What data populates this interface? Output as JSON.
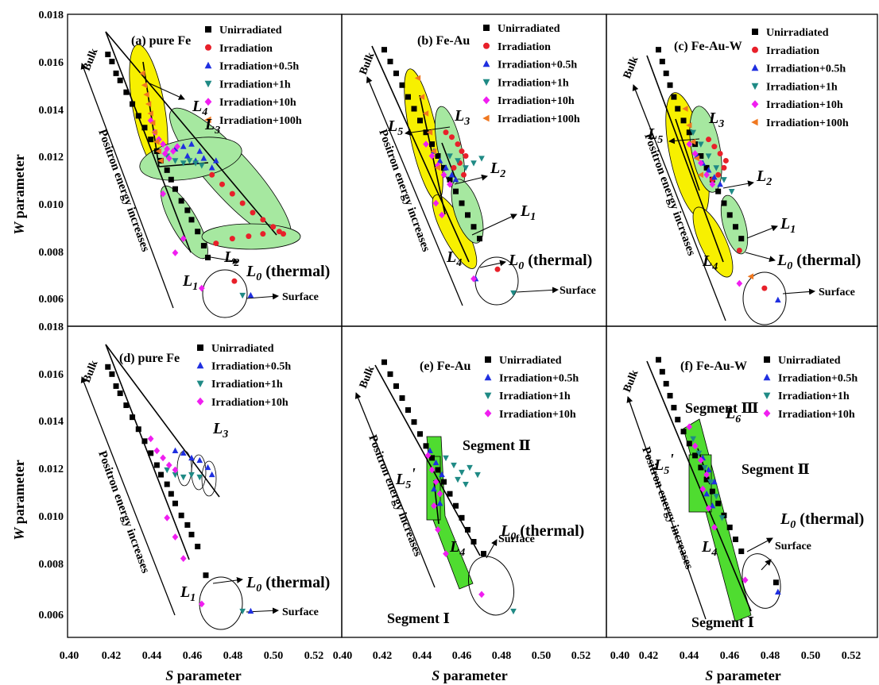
{
  "figure": {
    "ylabel_main": "W",
    "ylabel_suffix": " parameter",
    "xlabel_main": "S",
    "xlabel_suffix": " parameter",
    "surface_label": "Surface",
    "bulk_label": "Bulk",
    "positron_label": "Positron energy increases",
    "l0_label": "L",
    "l0_sub": "0",
    "l0_suffix": " (thermal)",
    "colors": {
      "Unirradiated": "#000000",
      "Irradiation": "#e8202a",
      "Irradiation+0.5h": "#1f2fe0",
      "Irradiation+1h": "#1f8a85",
      "Irradiation+10h": "#f01ef0",
      "Irradiation+100h": "#f07820",
      "yellow_region": "#f7f000",
      "green_region": "#a6e8a0",
      "segment_fill": "#4fdc30",
      "segment_text": "#1f2fe0"
    }
  },
  "chart_data": [
    {
      "type": "scatter",
      "panel": "(a) pure Fe",
      "xlabel": "",
      "ylabel": "W parameter",
      "xlim": [
        0.4,
        0.53
      ],
      "ylim": [
        0.0053,
        0.018
      ],
      "y_ticks": [
        "0.006",
        "0.008",
        "0.010",
        "0.012",
        "0.014",
        "0.016",
        "0.018"
      ],
      "x_ticks": [],
      "legend": [
        "Unirradiated",
        "Irradiation",
        "Irradiation+0.5h",
        "Irradiation+1h",
        "Irradiation+10h",
        "Irradiation+100h"
      ],
      "series": [
        {
          "name": "Unirradiated",
          "x": [
            0.419,
            0.421,
            0.423,
            0.425,
            0.428,
            0.431,
            0.434,
            0.437,
            0.44,
            0.443,
            0.445,
            0.448,
            0.45,
            0.452,
            0.455,
            0.458,
            0.46,
            0.463,
            0.466,
            0.468
          ],
          "y": [
            0.0163,
            0.016,
            0.0155,
            0.0152,
            0.0147,
            0.0142,
            0.0137,
            0.0132,
            0.0127,
            0.0122,
            0.0118,
            0.0114,
            0.011,
            0.0106,
            0.0101,
            0.0097,
            0.0093,
            0.0088,
            0.0082,
            0.0077
          ]
        },
        {
          "name": "Irradiation",
          "x": [
            0.47,
            0.475,
            0.48,
            0.485,
            0.49,
            0.495,
            0.5,
            0.503,
            0.505,
            0.495,
            0.488,
            0.48,
            0.472
          ],
          "y": [
            0.0112,
            0.0108,
            0.0104,
            0.01,
            0.0096,
            0.0093,
            0.009,
            0.0088,
            0.0087,
            0.0087,
            0.0086,
            0.0085,
            0.0083
          ]
        },
        {
          "name": "Irradiation+0.5h",
          "x": [
            0.452,
            0.456,
            0.46,
            0.464,
            0.466,
            0.462,
            0.458,
            0.47,
            0.472
          ],
          "y": [
            0.0123,
            0.0124,
            0.0125,
            0.0122,
            0.0119,
            0.0118,
            0.012,
            0.0115,
            0.0118
          ]
        },
        {
          "name": "Irradiation+1h",
          "x": [
            0.448,
            0.452,
            0.456,
            0.459,
            0.462,
            0.465
          ],
          "y": [
            0.012,
            0.0118,
            0.0117,
            0.0118,
            0.0117,
            0.0116
          ]
        },
        {
          "name": "Irradiation+10h",
          "x": [
            0.44,
            0.442,
            0.444,
            0.446,
            0.448,
            0.447,
            0.449,
            0.451,
            0.453,
            0.446,
            0.456,
            0.452
          ],
          "y": [
            0.0135,
            0.013,
            0.0127,
            0.0125,
            0.0123,
            0.0121,
            0.0119,
            0.0122,
            0.0124,
            0.0104,
            0.0085,
            0.0079
          ]
        },
        {
          "name": "Irradiation+100h",
          "x": [
            0.436,
            0.437,
            0.438,
            0.439,
            0.44,
            0.441,
            0.442,
            0.443,
            0.444,
            0.445
          ],
          "y": [
            0.0155,
            0.015,
            0.0146,
            0.0142,
            0.0138,
            0.0134,
            0.013,
            0.0126,
            0.0122,
            0.0118
          ]
        }
      ],
      "surface_points": [
        {
          "series": "Irradiation",
          "x": 0.481,
          "y": 0.0067
        },
        {
          "series": "Irradiation+0.5h",
          "x": 0.489,
          "y": 0.0061
        },
        {
          "series": "Irradiation+1h",
          "x": 0.485,
          "y": 0.0061
        },
        {
          "series": "Irradiation+10h",
          "x": 0.465,
          "y": 0.0064
        }
      ],
      "annotations": [
        "L4",
        "L3",
        "L2",
        "L1",
        "L0 (thermal)",
        "Bulk",
        "Positron energy increases",
        "Surface"
      ]
    },
    {
      "type": "scatter",
      "panel": "(b) Fe-Au",
      "xlim": [
        0.4,
        0.53
      ],
      "ylim": [
        0.0053,
        0.018
      ],
      "legend": [
        "Unirradiated",
        "Irradiation",
        "Irradiation+0.5h",
        "Irradiation+1h",
        "Irradiation+10h",
        "Irradiation+100h"
      ],
      "series": [
        {
          "name": "Unirradiated",
          "x": [
            0.421,
            0.424,
            0.427,
            0.43,
            0.433,
            0.436,
            0.439,
            0.442,
            0.445,
            0.448,
            0.451,
            0.454,
            0.457,
            0.46,
            0.463,
            0.466,
            0.469
          ],
          "y": [
            0.0165,
            0.016,
            0.0155,
            0.015,
            0.0145,
            0.014,
            0.0135,
            0.013,
            0.0125,
            0.012,
            0.0115,
            0.011,
            0.0105,
            0.01,
            0.0095,
            0.009,
            0.0085
          ]
        },
        {
          "name": "Irradiation",
          "x": [
            0.452,
            0.455,
            0.458,
            0.46,
            0.462,
            0.459,
            0.456,
            0.461,
            0.478
          ],
          "y": [
            0.013,
            0.0128,
            0.0125,
            0.0122,
            0.012,
            0.0117,
            0.0115,
            0.0112,
            0.0072
          ]
        },
        {
          "name": "Irradiation+0.5h",
          "x": [
            0.446,
            0.449,
            0.452,
            0.455,
            0.457,
            0.467
          ],
          "y": [
            0.0122,
            0.0118,
            0.0115,
            0.0112,
            0.011,
            0.0068
          ]
        },
        {
          "name": "Irradiation+1h",
          "x": [
            0.454,
            0.458,
            0.462,
            0.466,
            0.47,
            0.486
          ],
          "y": [
            0.012,
            0.0118,
            0.0115,
            0.0117,
            0.0119,
            0.0062
          ]
        },
        {
          "name": "Irradiation+10h",
          "x": [
            0.442,
            0.445,
            0.448,
            0.451,
            0.454,
            0.447,
            0.45,
            0.466
          ],
          "y": [
            0.0125,
            0.012,
            0.0116,
            0.0112,
            0.0108,
            0.01,
            0.0095,
            0.0068
          ]
        },
        {
          "name": "Irradiation+100h",
          "x": [
            0.438,
            0.44,
            0.442,
            0.444,
            0.446,
            0.448
          ],
          "y": [
            0.0153,
            0.0145,
            0.0138,
            0.013,
            0.0122,
            0.0115
          ]
        }
      ],
      "annotations": [
        "L5",
        "L3",
        "L2",
        "L1",
        "L4",
        "L0 (thermal)",
        "Bulk",
        "Positron energy increases",
        "Surface"
      ]
    },
    {
      "type": "scatter",
      "panel": "(c) Fe-Au-W",
      "xlim": [
        0.4,
        0.53
      ],
      "ylim": [
        0.0053,
        0.018
      ],
      "legend": [
        "Unirradiated",
        "Irradiation",
        "Irradiation+0.5h",
        "Irradiation+1h",
        "Irradiation+10h",
        "Irradiation+100h"
      ],
      "series": [
        {
          "name": "Unirradiated",
          "x": [
            0.42,
            0.422,
            0.424,
            0.426,
            0.428,
            0.43,
            0.433,
            0.436,
            0.439,
            0.442,
            0.445,
            0.448,
            0.451,
            0.454,
            0.457,
            0.46,
            0.463
          ],
          "y": [
            0.0165,
            0.016,
            0.0155,
            0.015,
            0.0145,
            0.014,
            0.0135,
            0.013,
            0.0125,
            0.012,
            0.0115,
            0.011,
            0.0105,
            0.01,
            0.0095,
            0.009,
            0.0085
          ]
        },
        {
          "name": "Irradiation",
          "x": [
            0.446,
            0.449,
            0.452,
            0.455,
            0.454,
            0.451,
            0.448,
            0.462,
            0.475
          ],
          "y": [
            0.0127,
            0.0124,
            0.0121,
            0.0118,
            0.0115,
            0.0112,
            0.011,
            0.008,
            0.0064
          ]
        },
        {
          "name": "Irradiation+0.5h",
          "x": [
            0.44,
            0.443,
            0.446,
            0.449,
            0.452,
            0.482
          ],
          "y": [
            0.012,
            0.0117,
            0.0114,
            0.0111,
            0.0108,
            0.0059
          ]
        },
        {
          "name": "Irradiation+1h",
          "x": [
            0.438,
            0.442,
            0.446,
            0.45,
            0.454,
            0.458
          ],
          "y": [
            0.013,
            0.0125,
            0.012,
            0.0115,
            0.011,
            0.0105
          ]
        },
        {
          "name": "Irradiation+10h",
          "x": [
            0.436,
            0.439,
            0.442,
            0.445,
            0.448,
            0.462
          ],
          "y": [
            0.0125,
            0.0121,
            0.0117,
            0.0112,
            0.0108,
            0.0066
          ]
        },
        {
          "name": "Irradiation+100h",
          "x": [
            0.434,
            0.436,
            0.438,
            0.44,
            0.442,
            0.468
          ],
          "y": [
            0.014,
            0.0133,
            0.0126,
            0.0119,
            0.0112,
            0.0069
          ]
        }
      ],
      "annotations": [
        "L5",
        "L3",
        "L2",
        "L1",
        "L4",
        "L0 (thermal)",
        "Bulk",
        "Positron energy increases",
        "Surface"
      ]
    },
    {
      "type": "scatter",
      "panel": "(d) pure Fe",
      "xlabel": "S parameter",
      "ylabel": "W parameter",
      "xlim": [
        0.4,
        0.53
      ],
      "ylim": [
        0.0053,
        0.018
      ],
      "x_ticks": [
        "0.40",
        "0.42",
        "0.44",
        "0.46",
        "0.48",
        "0.50",
        "0.52"
      ],
      "y_ticks": [
        "0.006",
        "0.008",
        "0.010",
        "0.012",
        "0.014",
        "0.016",
        "0.018"
      ],
      "legend": [
        "Unirradiated",
        "Irradiation+0.5h",
        "Irradiation+1h",
        "Irradiation+10h"
      ],
      "series": [
        {
          "name": "Unirradiated",
          "x": [
            0.419,
            0.421,
            0.423,
            0.425,
            0.428,
            0.431,
            0.434,
            0.437,
            0.44,
            0.443,
            0.445,
            0.448,
            0.45,
            0.452,
            0.455,
            0.458,
            0.46,
            0.463,
            0.467
          ],
          "y": [
            0.0163,
            0.016,
            0.0155,
            0.0152,
            0.0147,
            0.0142,
            0.0137,
            0.0132,
            0.0127,
            0.0122,
            0.0118,
            0.0114,
            0.011,
            0.0106,
            0.0101,
            0.0097,
            0.0093,
            0.0088,
            0.0076
          ]
        },
        {
          "name": "Irradiation+0.5h",
          "x": [
            0.452,
            0.456,
            0.46,
            0.464,
            0.468,
            0.47,
            0.489
          ],
          "y": [
            0.0128,
            0.0127,
            0.0125,
            0.0124,
            0.0121,
            0.0118,
            0.0061
          ]
        },
        {
          "name": "Irradiation+1h",
          "x": [
            0.448,
            0.452,
            0.456,
            0.46,
            0.464,
            0.485
          ],
          "y": [
            0.012,
            0.0118,
            0.0117,
            0.0118,
            0.0117,
            0.0061
          ]
        },
        {
          "name": "Irradiation+10h",
          "x": [
            0.44,
            0.443,
            0.446,
            0.449,
            0.452,
            0.448,
            0.452,
            0.456,
            0.465
          ],
          "y": [
            0.0133,
            0.0128,
            0.0125,
            0.0122,
            0.012,
            0.01,
            0.0092,
            0.0083,
            0.0064
          ]
        }
      ],
      "annotations": [
        "L3",
        "L1",
        "L0 (thermal)",
        "Bulk",
        "Positron energy increases",
        "Surface"
      ]
    },
    {
      "type": "scatter",
      "panel": "(e) Fe-Au",
      "xlabel": "S parameter",
      "xlim": [
        0.4,
        0.53
      ],
      "ylim": [
        0.0053,
        0.018
      ],
      "x_ticks": [
        "0.40",
        "0.42",
        "0.44",
        "0.46",
        "0.48",
        "0.50",
        "0.52"
      ],
      "legend": [
        "Unirradiated",
        "Irradiation+0.5h",
        "Irradiation+1h",
        "Irradiation+10h"
      ],
      "series": [
        {
          "name": "Unirradiated",
          "x": [
            0.421,
            0.424,
            0.427,
            0.43,
            0.433,
            0.436,
            0.439,
            0.442,
            0.445,
            0.448,
            0.451,
            0.454,
            0.457,
            0.46,
            0.463,
            0.466,
            0.471
          ],
          "y": [
            0.0165,
            0.016,
            0.0155,
            0.015,
            0.0145,
            0.014,
            0.0135,
            0.013,
            0.0125,
            0.012,
            0.0115,
            0.011,
            0.0105,
            0.01,
            0.0095,
            0.009,
            0.0085
          ]
        },
        {
          "name": "Irradiation+0.5h",
          "x": [
            0.444,
            0.447,
            0.45,
            0.446,
            0.449
          ],
          "y": [
            0.0128,
            0.0123,
            0.0118,
            0.0112,
            0.0106
          ]
        },
        {
          "name": "Irradiation+1h",
          "x": [
            0.452,
            0.456,
            0.46,
            0.464,
            0.468,
            0.458,
            0.462,
            0.486
          ],
          "y": [
            0.0125,
            0.0122,
            0.0119,
            0.0121,
            0.0118,
            0.0116,
            0.0114,
            0.0061
          ]
        },
        {
          "name": "Irradiation+10h",
          "x": [
            0.443,
            0.445,
            0.447,
            0.449,
            0.446,
            0.448,
            0.452,
            0.47
          ],
          "y": [
            0.0126,
            0.012,
            0.0115,
            0.011,
            0.0105,
            0.0095,
            0.0085,
            0.0068
          ]
        }
      ],
      "annotations": [
        "Segment II",
        "Segment I",
        "L5'",
        "L4",
        "L0 (thermal)",
        "Bulk",
        "Positron energy increases",
        "Surface"
      ]
    },
    {
      "type": "scatter",
      "panel": "(f) Fe-Au-W",
      "xlabel": "S parameter",
      "xlim": [
        0.4,
        0.53
      ],
      "ylim": [
        0.0053,
        0.018
      ],
      "x_ticks": [
        "0.40",
        "0.42",
        "0.44",
        "0.46",
        "0.48",
        "0.50",
        "0.52"
      ],
      "legend": [
        "Unirradiated",
        "Irradiation+0.5h",
        "Irradiation+1h",
        "Irradiation+10h"
      ],
      "series": [
        {
          "name": "Unirradiated",
          "x": [
            0.42,
            0.422,
            0.424,
            0.426,
            0.428,
            0.43,
            0.433,
            0.436,
            0.439,
            0.442,
            0.445,
            0.448,
            0.451,
            0.454,
            0.457,
            0.46,
            0.463,
            0.481
          ],
          "y": [
            0.0166,
            0.0161,
            0.0156,
            0.0151,
            0.0146,
            0.0141,
            0.0136,
            0.0131,
            0.0126,
            0.0121,
            0.0116,
            0.0111,
            0.0106,
            0.0101,
            0.0096,
            0.0091,
            0.0086,
            0.0073
          ]
        },
        {
          "name": "Irradiation+0.5h",
          "x": [
            0.443,
            0.446,
            0.449,
            0.445,
            0.448,
            0.482
          ],
          "y": [
            0.0125,
            0.012,
            0.0115,
            0.011,
            0.0105,
            0.0069
          ]
        },
        {
          "name": "Irradiation+1h",
          "x": [
            0.438,
            0.441,
            0.444,
            0.447,
            0.45,
            0.453
          ],
          "y": [
            0.0133,
            0.0127,
            0.0121,
            0.0115,
            0.0109,
            0.01
          ]
        },
        {
          "name": "Irradiation+10h",
          "x": [
            0.436,
            0.439,
            0.442,
            0.445,
            0.443,
            0.446,
            0.449,
            0.465
          ],
          "y": [
            0.0138,
            0.013,
            0.0124,
            0.0118,
            0.0112,
            0.0104,
            0.0096,
            0.0074
          ]
        }
      ],
      "annotations": [
        "Segment III",
        "Segment II",
        "Segment I",
        "L6",
        "L5'",
        "L4",
        "L0 (thermal)",
        "Bulk",
        "Positron energy increases",
        "Surface"
      ]
    }
  ]
}
